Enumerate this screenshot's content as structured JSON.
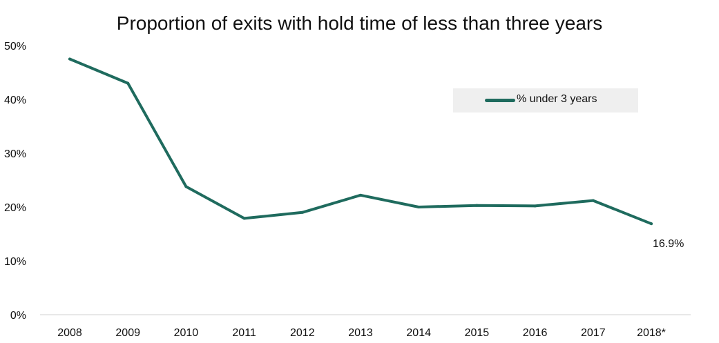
{
  "chart_data": {
    "type": "line",
    "title": "Proportion of exits with hold time of less than three years",
    "xlabel": "",
    "ylabel": "",
    "categories": [
      "2008",
      "2009",
      "2010",
      "2011",
      "2012",
      "2013",
      "2014",
      "2015",
      "2016",
      "2017",
      "2018*"
    ],
    "series": [
      {
        "name": "% under 3 years",
        "color": "#1f6b5e",
        "values": [
          47.5,
          43.0,
          23.8,
          17.9,
          19.0,
          22.2,
          20.0,
          20.3,
          20.2,
          21.2,
          16.9
        ]
      }
    ],
    "y_ticks": [
      "0%",
      "10%",
      "20%",
      "30%",
      "40%",
      "50%"
    ],
    "ylim": [
      0,
      50
    ],
    "grid": false,
    "legend": {
      "placement": "top-right",
      "label": "% under 3 years"
    },
    "annotations": [
      {
        "series": 0,
        "category_index": 10,
        "text": "16.9%"
      }
    ]
  }
}
